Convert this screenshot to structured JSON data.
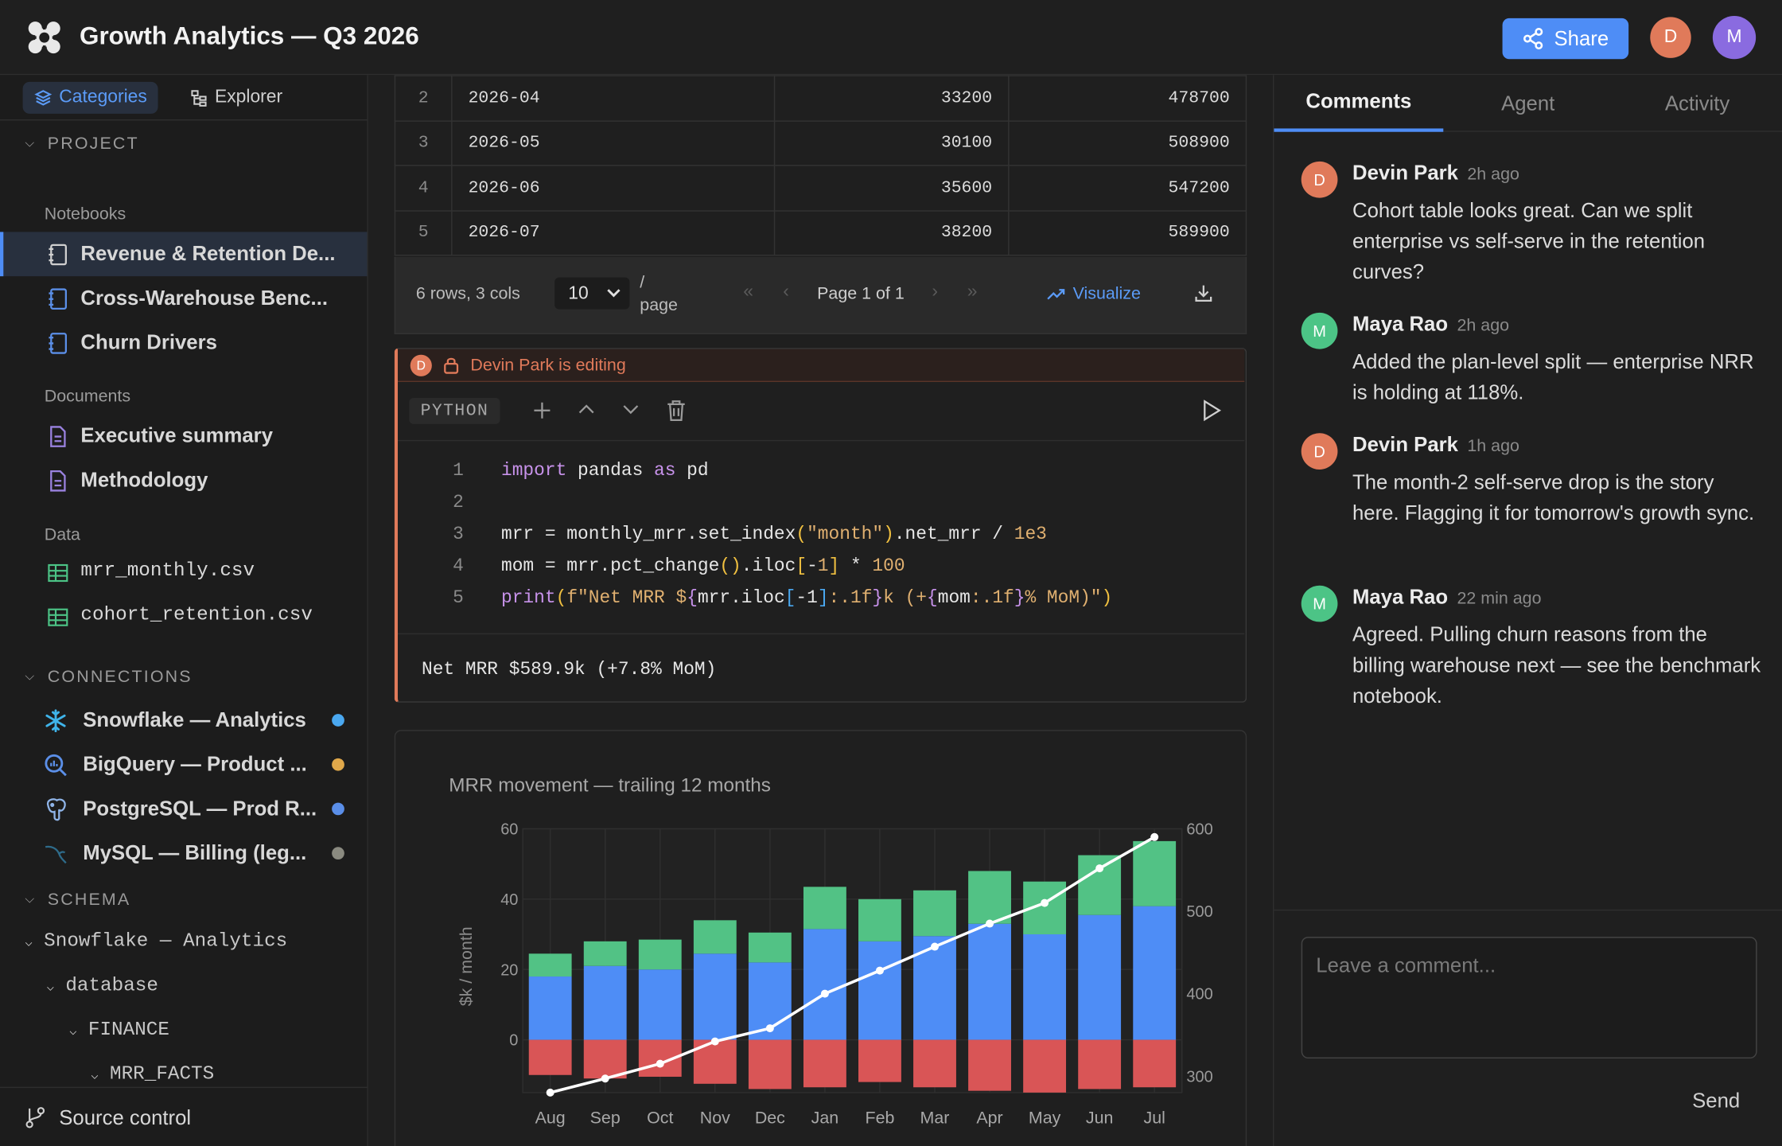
{
  "app": {
    "title": "Growth Analytics — Q3 2026",
    "share_label": "Share",
    "avatars": [
      "D",
      "M"
    ]
  },
  "sidebar": {
    "tabs": [
      {
        "label": "Categories",
        "active": true
      },
      {
        "label": "Explorer",
        "active": false
      }
    ],
    "project_label": "PROJECT",
    "notebooks_label": "Notebooks",
    "notebooks": [
      "Revenue & Retention De...",
      "Cross-Warehouse Benc...",
      "Churn Drivers"
    ],
    "documents_label": "Documents",
    "documents": [
      "Executive summary",
      "Methodology"
    ],
    "data_label": "Data",
    "data_files": [
      "mrr_monthly.csv",
      "cohort_retention.csv"
    ],
    "connections_label": "CONNECTIONS",
    "connections": [
      {
        "label": "Snowflake — Analytics",
        "icon": "snowflake-icon",
        "status_color": "#4aa8f0"
      },
      {
        "label": "BigQuery — Product ...",
        "icon": "bigquery-icon",
        "status_color": "#e0a84a"
      },
      {
        "label": "PostgreSQL — Prod R...",
        "icon": "postgresql-icon",
        "status_color": "#5a8ee8"
      },
      {
        "label": "MySQL — Billing (leg...",
        "icon": "mysql-icon",
        "status_color": "#8a8a80"
      }
    ],
    "schema_label": "SCHEMA",
    "schema_tree": [
      "Snowflake — Analytics",
      "database",
      "FINANCE",
      "MRR_FACTS"
    ],
    "source_control_label": "Source control"
  },
  "table": {
    "rows": [
      [
        "2",
        "2026-04",
        "33200",
        "478700"
      ],
      [
        "3",
        "2026-05",
        "30100",
        "508900"
      ],
      [
        "4",
        "2026-06",
        "35600",
        "547200"
      ],
      [
        "5",
        "2026-07",
        "38200",
        "589900"
      ]
    ],
    "summary": "6 rows, 3 cols",
    "page_size": "10",
    "per_page_label_1": "/",
    "per_page_label_2": "page",
    "page_label": "Page 1 of 1",
    "visualize_label": "Visualize"
  },
  "cell": {
    "editing_avatar": "D",
    "editing_text": "Devin Park is editing",
    "language": "PYTHON",
    "line_numbers": [
      "1",
      "2",
      "3",
      "4",
      "5"
    ],
    "output": "Net MRR $589.9k (+7.8% MoM)"
  },
  "chart_data": {
    "type": "bar",
    "title": "MRR movement — trailing 12 months",
    "ylabel": "$k / month",
    "categories": [
      "Aug",
      "Sep",
      "Oct",
      "Nov",
      "Dec",
      "Jan",
      "Feb",
      "Mar",
      "Apr",
      "May",
      "Jun",
      "Jul"
    ],
    "series": [
      {
        "type": "bar",
        "color": "#4e8df6",
        "values": [
          18,
          21,
          20,
          24.5,
          22,
          31.5,
          28,
          29.5,
          33,
          30,
          35.5,
          38
        ]
      },
      {
        "type": "bar",
        "color": "#52c285",
        "values": [
          6.5,
          7,
          8.5,
          9.5,
          8.5,
          12,
          12,
          13,
          15,
          15,
          17,
          18.5
        ]
      },
      {
        "type": "bar",
        "color": "#d95556",
        "values": [
          -10,
          -11,
          -10.5,
          -12.5,
          -14,
          -13.5,
          -12,
          -13.5,
          -14.5,
          -15,
          -14,
          -13.5
        ]
      },
      {
        "type": "line",
        "axis": "right",
        "color": "#ffffff",
        "values": [
          280,
          297,
          315,
          342,
          358,
          400,
          428,
          457,
          485,
          510,
          552,
          590
        ]
      }
    ],
    "ylim": [
      -15,
      60
    ],
    "yticks": [
      0,
      20,
      40,
      60
    ],
    "y2lim": [
      280,
      600
    ],
    "y2ticks": [
      300,
      400,
      500,
      600
    ],
    "grid": true
  },
  "right": {
    "tabs": [
      {
        "label": "Comments",
        "active": true
      },
      {
        "label": "Agent",
        "active": false
      },
      {
        "label": "Activity",
        "active": false
      }
    ],
    "comments": [
      {
        "initial": "D",
        "author": "Devin Park",
        "time": "2h ago",
        "text": "Cohort table looks great. Can we split enterprise vs self-serve in the retention curves?",
        "color": "#e07a5a"
      },
      {
        "initial": "M",
        "author": "Maya Rao",
        "time": "2h ago",
        "text": "Added the plan-level split — enterprise NRR is holding at 118%.",
        "color": "#4cc486"
      },
      {
        "initial": "D",
        "author": "Devin Park",
        "time": "1h ago",
        "text": "The month-2 self-serve drop is the story here. Flagging it for tomorrow's growth sync.",
        "color": "#e07a5a"
      },
      {
        "initial": "M",
        "author": "Maya Rao",
        "time": "22 min ago",
        "text": "Agreed. Pulling churn reasons from the billing warehouse next — see the benchmark notebook.",
        "color": "#4cc486"
      }
    ],
    "comment_placeholder": "Leave a comment...",
    "send_label": "Send"
  }
}
